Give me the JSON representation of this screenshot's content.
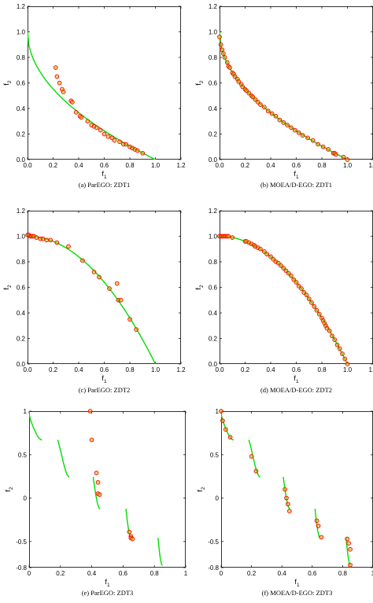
{
  "figure": {
    "colors": {
      "pareto_front": "#00dd00",
      "points_edge": "#ff0000",
      "points_fill": "#c8b400",
      "axes": "#000000"
    }
  },
  "chart_data": [
    {
      "id": "a",
      "type": "scatter",
      "caption": "(a) ParEGO: ZDT1",
      "xlabel": "f",
      "xlabel_sub": "1",
      "ylabel": "f",
      "ylabel_sub": "2",
      "xlim": [
        0,
        1.2
      ],
      "ylim": [
        0,
        1.2
      ],
      "xticks": [
        0,
        0.2,
        0.4,
        0.6,
        0.8,
        1,
        1.2
      ],
      "xtick_labels": [
        "0.0",
        "0.2",
        "0.4",
        "0.6",
        "0.8",
        "1.0",
        "1.2"
      ],
      "yticks": [
        0,
        0.2,
        0.4,
        0.6,
        0.8,
        1,
        1.2
      ],
      "ytick_labels": [
        "0.0",
        "0.2",
        "0.4",
        "0.6",
        "0.8",
        "1.0",
        "1.2"
      ],
      "front": {
        "kind": "zdt1"
      },
      "points": [
        [
          0.22,
          0.72
        ],
        [
          0.23,
          0.65
        ],
        [
          0.25,
          0.6
        ],
        [
          0.27,
          0.55
        ],
        [
          0.28,
          0.53
        ],
        [
          0.34,
          0.46
        ],
        [
          0.35,
          0.45
        ],
        [
          0.38,
          0.37
        ],
        [
          0.41,
          0.34
        ],
        [
          0.42,
          0.33
        ],
        [
          0.47,
          0.3
        ],
        [
          0.5,
          0.27
        ],
        [
          0.52,
          0.26
        ],
        [
          0.54,
          0.25
        ],
        [
          0.57,
          0.23
        ],
        [
          0.6,
          0.2
        ],
        [
          0.63,
          0.18
        ],
        [
          0.66,
          0.17
        ],
        [
          0.68,
          0.15
        ],
        [
          0.72,
          0.14
        ],
        [
          0.75,
          0.12
        ],
        [
          0.77,
          0.12
        ],
        [
          0.8,
          0.1
        ],
        [
          0.82,
          0.09
        ],
        [
          0.84,
          0.08
        ],
        [
          0.86,
          0.07
        ],
        [
          0.9,
          0.05
        ]
      ]
    },
    {
      "id": "b",
      "type": "scatter",
      "caption": "(b) MOEA/D-EGO: ZDT1",
      "xlabel": "f",
      "xlabel_sub": "1",
      "ylabel": "f",
      "ylabel_sub": "2",
      "xlim": [
        0,
        1.2
      ],
      "ylim": [
        0,
        1.2
      ],
      "xticks": [
        0,
        0.2,
        0.4,
        0.6,
        0.8,
        1,
        1.2
      ],
      "xtick_labels": [
        "0.0",
        "0.2",
        "0.4",
        "0.6",
        "0.8",
        "1.0",
        "1.2"
      ],
      "yticks": [
        0,
        0.2,
        0.4,
        0.6,
        0.8,
        1,
        1.2
      ],
      "ytick_labels": [
        "0.0",
        "0.2",
        "0.4",
        "0.6",
        "0.8",
        "1.0",
        "1.2"
      ],
      "front": {
        "kind": "zdt1"
      },
      "points": [
        [
          0.0,
          0.96
        ],
        [
          0.01,
          0.9
        ],
        [
          0.02,
          0.86
        ],
        [
          0.03,
          0.83
        ],
        [
          0.04,
          0.8
        ],
        [
          0.06,
          0.76
        ],
        [
          0.07,
          0.73
        ],
        [
          0.08,
          0.72
        ],
        [
          0.1,
          0.68
        ],
        [
          0.11,
          0.67
        ],
        [
          0.12,
          0.65
        ],
        [
          0.14,
          0.63
        ],
        [
          0.15,
          0.61
        ],
        [
          0.17,
          0.59
        ],
        [
          0.18,
          0.57
        ],
        [
          0.2,
          0.55
        ],
        [
          0.21,
          0.54
        ],
        [
          0.23,
          0.52
        ],
        [
          0.25,
          0.5
        ],
        [
          0.26,
          0.49
        ],
        [
          0.28,
          0.47
        ],
        [
          0.3,
          0.45
        ],
        [
          0.32,
          0.43
        ],
        [
          0.35,
          0.41
        ],
        [
          0.38,
          0.38
        ],
        [
          0.41,
          0.36
        ],
        [
          0.44,
          0.34
        ],
        [
          0.47,
          0.31
        ],
        [
          0.5,
          0.29
        ],
        [
          0.53,
          0.27
        ],
        [
          0.56,
          0.25
        ],
        [
          0.59,
          0.23
        ],
        [
          0.62,
          0.21
        ],
        [
          0.65,
          0.19
        ],
        [
          0.69,
          0.17
        ],
        [
          0.73,
          0.15
        ],
        [
          0.77,
          0.12
        ],
        [
          0.81,
          0.1
        ],
        [
          0.85,
          0.08
        ],
        [
          0.89,
          0.05
        ],
        [
          0.9,
          0.05
        ],
        [
          0.91,
          0.04
        ],
        [
          0.97,
          0.02
        ],
        [
          1.0,
          0.0
        ]
      ]
    },
    {
      "id": "c",
      "type": "scatter",
      "caption": "(c) ParEGO: ZDT2",
      "xlabel": "f",
      "xlabel_sub": "1",
      "ylabel": "f",
      "ylabel_sub": "2",
      "xlim": [
        0,
        1.2
      ],
      "ylim": [
        0,
        1.2
      ],
      "xticks": [
        0,
        0.2,
        0.4,
        0.6,
        0.8,
        1,
        1.2
      ],
      "xtick_labels": [
        "0.0",
        "0.2",
        "0.4",
        "0.6",
        "0.8",
        "1.0",
        "1.2"
      ],
      "yticks": [
        0,
        0.2,
        0.4,
        0.6,
        0.8,
        1,
        1.2
      ],
      "ytick_labels": [
        "0.0",
        "0.2",
        "0.4",
        "0.6",
        "0.8",
        "1.0",
        "1.2"
      ],
      "front": {
        "kind": "zdt2"
      },
      "points": [
        [
          0.0,
          1.01
        ],
        [
          0.01,
          1.01
        ],
        [
          0.02,
          1.0
        ],
        [
          0.03,
          1.0
        ],
        [
          0.04,
          1.0
        ],
        [
          0.05,
          1.0
        ],
        [
          0.07,
          0.99
        ],
        [
          0.1,
          0.98
        ],
        [
          0.12,
          0.98
        ],
        [
          0.15,
          0.97
        ],
        [
          0.18,
          0.97
        ],
        [
          0.23,
          0.95
        ],
        [
          0.32,
          0.92
        ],
        [
          0.43,
          0.81
        ],
        [
          0.52,
          0.72
        ],
        [
          0.56,
          0.68
        ],
        [
          0.64,
          0.59
        ],
        [
          0.7,
          0.63
        ],
        [
          0.71,
          0.5
        ],
        [
          0.73,
          0.5
        ],
        [
          0.8,
          0.35
        ],
        [
          0.85,
          0.27
        ]
      ]
    },
    {
      "id": "d",
      "type": "scatter",
      "caption": "(d) MOEA/D-EGO: ZDT2",
      "xlabel": "f",
      "xlabel_sub": "1",
      "ylabel": "f",
      "ylabel_sub": "2",
      "xlim": [
        0,
        1.2
      ],
      "ylim": [
        0,
        1.2
      ],
      "xticks": [
        0,
        0.2,
        0.4,
        0.6,
        0.8,
        1,
        1.2
      ],
      "xtick_labels": [
        "0.0",
        "0.2",
        "0.4",
        "0.6",
        "0.8",
        "1.0",
        "1.2"
      ],
      "yticks": [
        0,
        0.2,
        0.4,
        0.6,
        0.8,
        1,
        1.2
      ],
      "ytick_labels": [
        "0.0",
        "0.2",
        "0.4",
        "0.6",
        "0.8",
        "1.0",
        "1.2"
      ],
      "front": {
        "kind": "zdt2"
      },
      "points": [
        [
          0.0,
          1.0
        ],
        [
          0.01,
          1.0
        ],
        [
          0.02,
          1.0
        ],
        [
          0.03,
          1.0
        ],
        [
          0.04,
          1.0
        ],
        [
          0.05,
          1.0
        ],
        [
          0.06,
          1.0
        ],
        [
          0.07,
          1.0
        ],
        [
          0.1,
          0.99
        ],
        [
          0.2,
          0.96
        ],
        [
          0.21,
          0.96
        ],
        [
          0.23,
          0.95
        ],
        [
          0.25,
          0.94
        ],
        [
          0.27,
          0.93
        ],
        [
          0.28,
          0.92
        ],
        [
          0.3,
          0.91
        ],
        [
          0.32,
          0.9
        ],
        [
          0.35,
          0.88
        ],
        [
          0.37,
          0.86
        ],
        [
          0.4,
          0.84
        ],
        [
          0.42,
          0.82
        ],
        [
          0.44,
          0.8
        ],
        [
          0.46,
          0.79
        ],
        [
          0.48,
          0.77
        ],
        [
          0.5,
          0.75
        ],
        [
          0.52,
          0.73
        ],
        [
          0.54,
          0.71
        ],
        [
          0.56,
          0.69
        ],
        [
          0.58,
          0.66
        ],
        [
          0.6,
          0.64
        ],
        [
          0.62,
          0.61
        ],
        [
          0.64,
          0.59
        ],
        [
          0.66,
          0.56
        ],
        [
          0.68,
          0.54
        ],
        [
          0.7,
          0.51
        ],
        [
          0.72,
          0.48
        ],
        [
          0.74,
          0.45
        ],
        [
          0.76,
          0.42
        ],
        [
          0.78,
          0.39
        ],
        [
          0.8,
          0.36
        ],
        [
          0.81,
          0.34
        ],
        [
          0.82,
          0.32
        ],
        [
          0.83,
          0.3
        ],
        [
          0.84,
          0.28
        ],
        [
          0.86,
          0.26
        ],
        [
          0.88,
          0.22
        ],
        [
          0.9,
          0.19
        ],
        [
          0.92,
          0.15
        ],
        [
          0.94,
          0.12
        ],
        [
          0.96,
          0.08
        ],
        [
          0.98,
          0.04
        ],
        [
          1.0,
          0.0
        ]
      ]
    },
    {
      "id": "e",
      "type": "scatter",
      "caption": "(e) ParEGO: ZDT3",
      "xlabel": "f",
      "xlabel_sub": "1",
      "ylabel": "f",
      "ylabel_sub": "2",
      "xlim": [
        0,
        1
      ],
      "ylim": [
        -0.8,
        1
      ],
      "xticks": [
        0,
        0.2,
        0.4,
        0.6,
        0.8,
        1
      ],
      "xtick_labels": [
        "0",
        "0.2",
        "0.4",
        "0.6",
        "0.8",
        "1"
      ],
      "yticks": [
        -0.8,
        -0.5,
        0,
        0.5,
        1
      ],
      "ytick_labels": [
        "-0.8",
        "-0.5",
        "0",
        "0.5",
        "1"
      ],
      "front": {
        "kind": "zdt3"
      },
      "points": [
        [
          0.39,
          1.0
        ],
        [
          0.4,
          0.67
        ],
        [
          0.43,
          0.29
        ],
        [
          0.44,
          0.18
        ],
        [
          0.44,
          0.05
        ],
        [
          0.45,
          0.04
        ],
        [
          0.64,
          -0.39
        ],
        [
          0.65,
          -0.44
        ],
        [
          0.65,
          -0.46
        ],
        [
          0.66,
          -0.47
        ]
      ]
    },
    {
      "id": "f",
      "type": "scatter",
      "caption": "(f) MOEA/D-EGO: ZDT3",
      "xlabel": "f",
      "xlabel_sub": "1",
      "ylabel": "f",
      "ylabel_sub": "2",
      "xlim": [
        0,
        1
      ],
      "ylim": [
        -0.8,
        1
      ],
      "xticks": [
        0,
        0.2,
        0.4,
        0.6,
        0.8,
        1
      ],
      "xtick_labels": [
        "0",
        "0.2",
        "0.4",
        "0.6",
        "0.8",
        "1"
      ],
      "yticks": [
        -0.8,
        -0.5,
        0,
        0.5,
        1
      ],
      "ytick_labels": [
        "-0.8",
        "-0.5",
        "0",
        "0.5",
        "1"
      ],
      "front": {
        "kind": "zdt3"
      },
      "points": [
        [
          0.0,
          1.0
        ],
        [
          0.01,
          0.89
        ],
        [
          0.03,
          0.79
        ],
        [
          0.06,
          0.7
        ],
        [
          0.2,
          0.48
        ],
        [
          0.23,
          0.31
        ],
        [
          0.42,
          0.1
        ],
        [
          0.43,
          0.0
        ],
        [
          0.44,
          -0.07
        ],
        [
          0.45,
          -0.15
        ],
        [
          0.63,
          -0.26
        ],
        [
          0.64,
          -0.32
        ],
        [
          0.66,
          -0.45
        ],
        [
          0.83,
          -0.47
        ],
        [
          0.84,
          -0.52
        ],
        [
          0.85,
          -0.59
        ],
        [
          0.85,
          -0.77
        ]
      ]
    }
  ]
}
